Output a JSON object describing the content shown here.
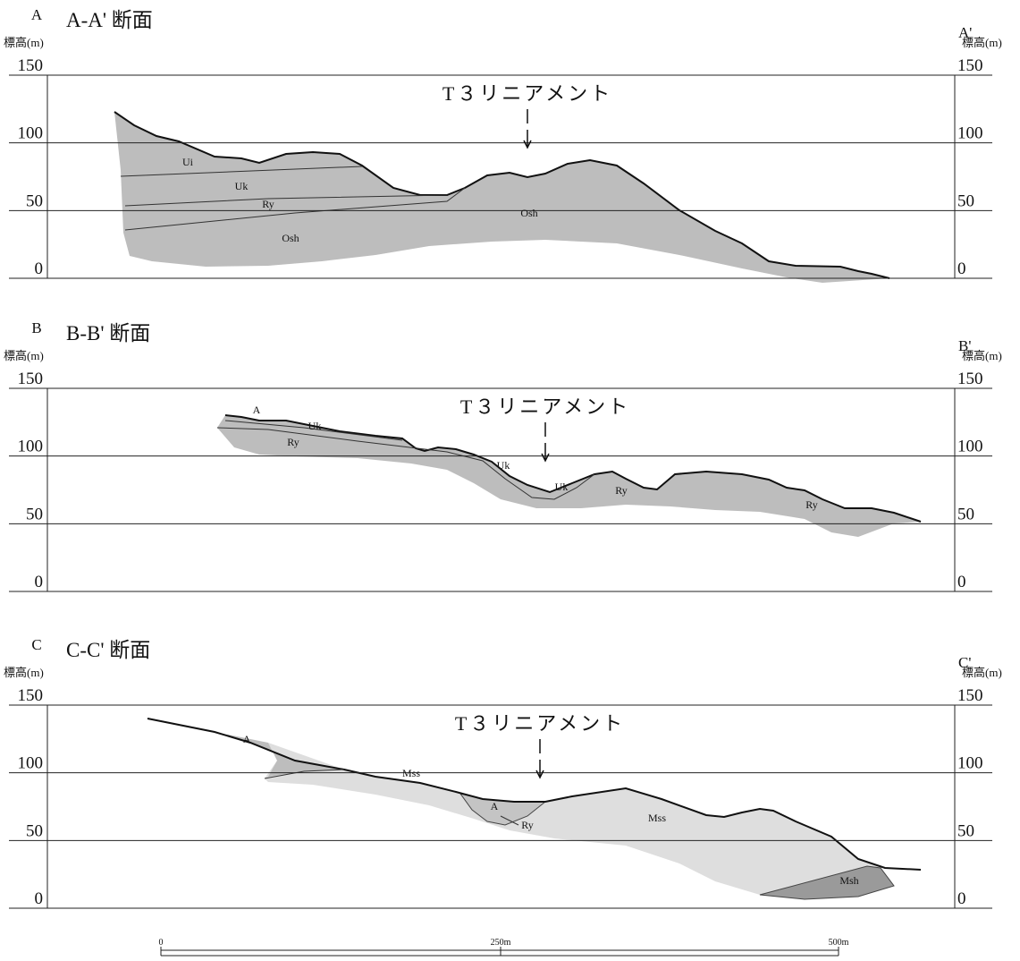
{
  "sections": [
    {
      "title": "A-A' 断面",
      "left": "A",
      "right": "A'",
      "elevation_label": "標高(m)",
      "ticks": [
        150,
        100,
        50,
        0
      ],
      "lineament": "T３リニアメント",
      "units": [
        "Ui",
        "Uk",
        "Ry",
        "Osh",
        "Osh"
      ]
    },
    {
      "title": "B-B' 断面",
      "left": "B",
      "right": "B'",
      "elevation_label": "標高(m)",
      "ticks": [
        150,
        100,
        50,
        0
      ],
      "lineament": "T３リニアメント",
      "units": [
        "A",
        "Uk",
        "Ry",
        "Uk",
        "Uk",
        "Ry",
        "Ry"
      ]
    },
    {
      "title": "C-C' 断面",
      "left": "C",
      "right": "C'",
      "elevation_label": "標高(m)",
      "ticks": [
        150,
        100,
        50,
        0
      ],
      "lineament": "T３リニアメント",
      "units": [
        "A",
        "Mss",
        "A",
        "Ry",
        "Mss",
        "Msh"
      ]
    }
  ],
  "scale": {
    "labels": [
      "0",
      "250m",
      "500m"
    ]
  }
}
